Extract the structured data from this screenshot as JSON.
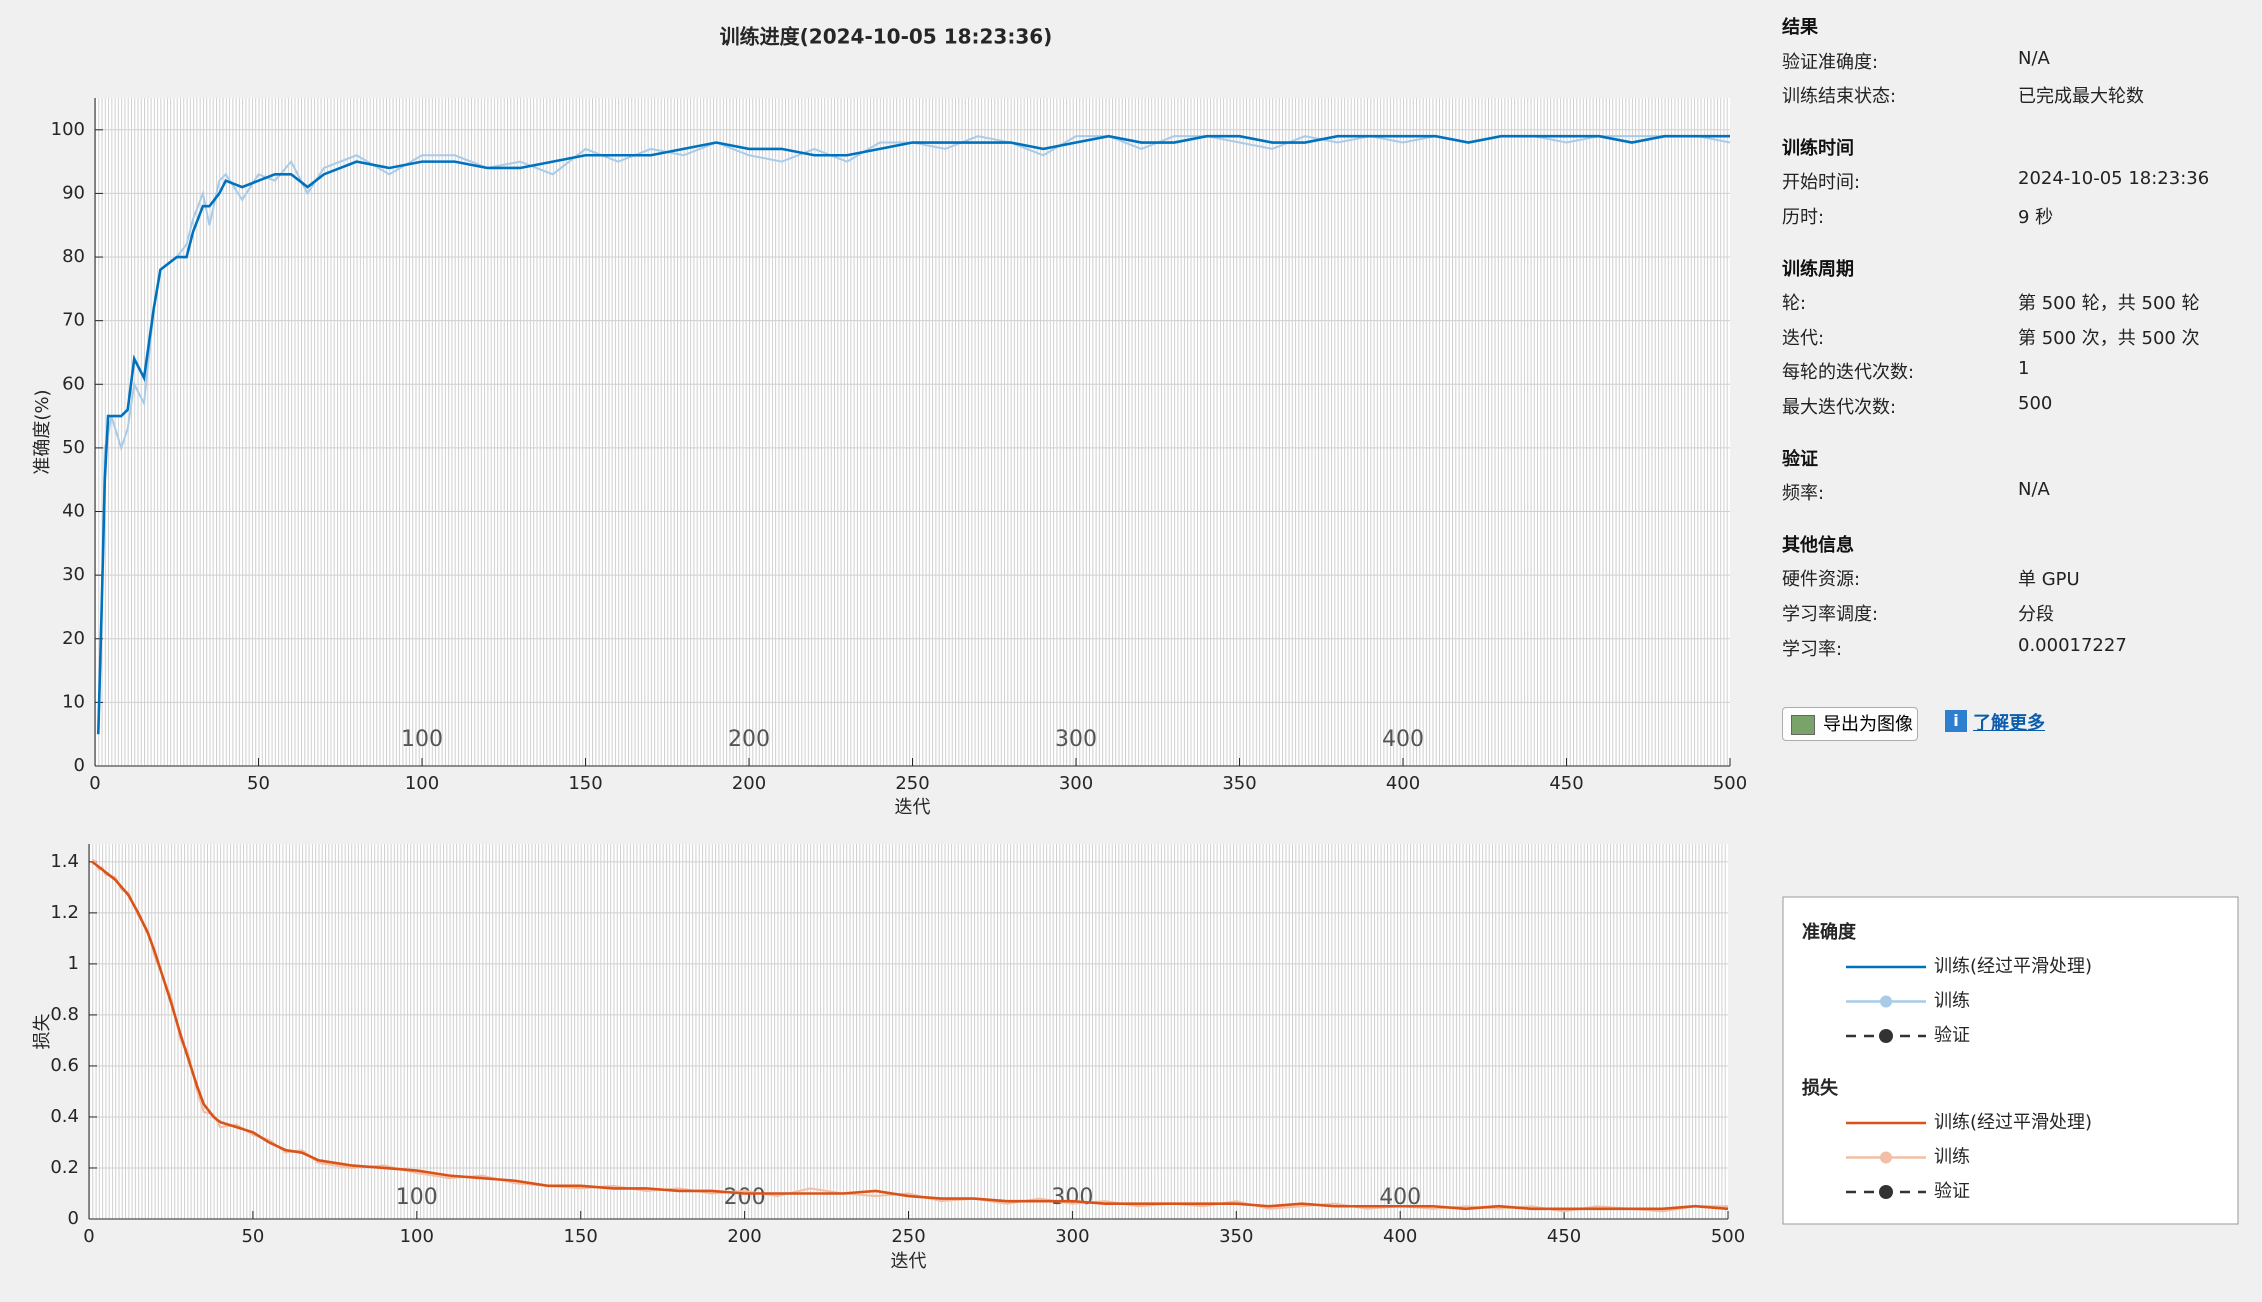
{
  "chart_data": [
    {
      "type": "line",
      "title": "训练进度(2024-10-05 18:23:36)",
      "xlabel": "迭代",
      "ylabel": "准确度(%)",
      "legend_title": "准确度",
      "validation_name": "验证",
      "validation_color": "#333333",
      "x": [
        1,
        2,
        3,
        4,
        5,
        8,
        10,
        12,
        15,
        18,
        20,
        25,
        28,
        30,
        33,
        35,
        38,
        40,
        45,
        50,
        55,
        60,
        65,
        70,
        80,
        90,
        100,
        110,
        120,
        130,
        140,
        150,
        160,
        170,
        180,
        190,
        200,
        210,
        220,
        230,
        240,
        250,
        260,
        270,
        280,
        290,
        300,
        310,
        320,
        330,
        340,
        350,
        360,
        370,
        380,
        390,
        400,
        410,
        420,
        430,
        440,
        450,
        460,
        470,
        480,
        490,
        500
      ],
      "series": [
        {
          "name": "训练(经过平滑处理)",
          "color": "#0072bd",
          "values": [
            5,
            24,
            45,
            55,
            55,
            55,
            56,
            64,
            61,
            72,
            78,
            80,
            80,
            84,
            88,
            88,
            90,
            92,
            91,
            92,
            93,
            93,
            91,
            93,
            95,
            94,
            95,
            95,
            94,
            94,
            95,
            96,
            96,
            96,
            97,
            98,
            97,
            97,
            96,
            96,
            97,
            98,
            98,
            98,
            98,
            97,
            98,
            99,
            98,
            98,
            99,
            99,
            98,
            98,
            99,
            99,
            99,
            99,
            98,
            99,
            99,
            99,
            99,
            98,
            99,
            99,
            99
          ]
        },
        {
          "name": "训练",
          "color": "#a9cbe8",
          "values": [
            5,
            23,
            50,
            52,
            55,
            50,
            53,
            60,
            57,
            72,
            78,
            80,
            82,
            86,
            90,
            85,
            92,
            93,
            89,
            93,
            92,
            95,
            90,
            94,
            96,
            93,
            96,
            96,
            94,
            95,
            93,
            97,
            95,
            97,
            96,
            98,
            96,
            95,
            97,
            95,
            98,
            98,
            97,
            99,
            98,
            96,
            99,
            99,
            97,
            99,
            99,
            98,
            97,
            99,
            98,
            99,
            98,
            99,
            98,
            99,
            99,
            98,
            99,
            99,
            99,
            99,
            98
          ]
        }
      ],
      "xlim": [
        0,
        500
      ],
      "xticks": [
        0,
        50,
        100,
        150,
        200,
        250,
        300,
        350,
        400,
        450,
        500
      ],
      "ylim": [
        0,
        105
      ],
      "yticks": [
        0,
        10,
        20,
        30,
        40,
        50,
        60,
        70,
        80,
        90,
        100
      ],
      "epoch_labels": [
        100,
        200,
        300,
        400
      ],
      "grid": true
    },
    {
      "type": "line",
      "xlabel": "迭代",
      "ylabel": "损失",
      "legend_title": "损失",
      "validation_name": "验证",
      "validation_color": "#333333",
      "x": [
        1,
        2,
        3,
        4,
        5,
        8,
        10,
        12,
        15,
        18,
        20,
        25,
        28,
        30,
        33,
        35,
        38,
        40,
        45,
        50,
        55,
        60,
        65,
        70,
        80,
        90,
        100,
        110,
        120,
        130,
        140,
        150,
        160,
        170,
        180,
        190,
        200,
        210,
        220,
        230,
        240,
        250,
        260,
        270,
        280,
        290,
        300,
        310,
        320,
        330,
        340,
        350,
        360,
        370,
        380,
        390,
        400,
        410,
        420,
        430,
        440,
        450,
        460,
        470,
        480,
        490,
        500
      ],
      "series": [
        {
          "name": "训练(经过平滑处理)",
          "color": "#d95319",
          "values": [
            1.4,
            1.39,
            1.38,
            1.37,
            1.36,
            1.33,
            1.3,
            1.27,
            1.2,
            1.12,
            1.05,
            0.85,
            0.72,
            0.64,
            0.52,
            0.45,
            0.4,
            0.38,
            0.36,
            0.34,
            0.3,
            0.27,
            0.26,
            0.23,
            0.21,
            0.2,
            0.19,
            0.17,
            0.16,
            0.15,
            0.13,
            0.13,
            0.12,
            0.12,
            0.11,
            0.11,
            0.1,
            0.1,
            0.1,
            0.1,
            0.11,
            0.09,
            0.08,
            0.08,
            0.07,
            0.07,
            0.07,
            0.06,
            0.06,
            0.06,
            0.06,
            0.06,
            0.05,
            0.06,
            0.05,
            0.05,
            0.05,
            0.05,
            0.04,
            0.05,
            0.04,
            0.04,
            0.04,
            0.04,
            0.04,
            0.05,
            0.04
          ]
        },
        {
          "name": "训练",
          "color": "#f2bea6",
          "values": [
            1.41,
            1.4,
            1.37,
            1.38,
            1.35,
            1.34,
            1.29,
            1.28,
            1.19,
            1.13,
            1.03,
            0.87,
            0.7,
            0.66,
            0.5,
            0.42,
            0.41,
            0.36,
            0.37,
            0.33,
            0.31,
            0.26,
            0.27,
            0.22,
            0.2,
            0.21,
            0.18,
            0.16,
            0.17,
            0.14,
            0.13,
            0.12,
            0.13,
            0.11,
            0.12,
            0.1,
            0.11,
            0.09,
            0.12,
            0.1,
            0.09,
            0.1,
            0.07,
            0.08,
            0.06,
            0.08,
            0.06,
            0.07,
            0.05,
            0.06,
            0.05,
            0.07,
            0.04,
            0.05,
            0.06,
            0.04,
            0.05,
            0.04,
            0.05,
            0.04,
            0.05,
            0.03,
            0.05,
            0.04,
            0.03,
            0.05,
            0.05
          ]
        }
      ],
      "xlim": [
        0,
        500
      ],
      "xticks": [
        0,
        50,
        100,
        150,
        200,
        250,
        300,
        350,
        400,
        450,
        500
      ],
      "ylim": [
        0,
        1.47
      ],
      "yticks": [
        0,
        0.2,
        0.4,
        0.6,
        0.8,
        1,
        1.2,
        1.4
      ],
      "epoch_labels": [
        100,
        200,
        300,
        400
      ],
      "grid": true
    }
  ],
  "panel": {
    "sections": [
      {
        "heading": "结果",
        "rows": [
          [
            "验证准确度:",
            "N/A"
          ],
          [
            "训练结束状态:",
            "已完成最大轮数"
          ]
        ]
      },
      {
        "heading": "训练时间",
        "rows": [
          [
            "开始时间:",
            "2024-10-05 18:23:36"
          ],
          [
            "历时:",
            "9 秒"
          ]
        ]
      },
      {
        "heading": "训练周期",
        "rows": [
          [
            "轮:",
            "第 500 轮，共 500 轮"
          ],
          [
            "迭代:",
            "第 500 次，共 500 次"
          ],
          [
            "每轮的迭代次数:",
            "1"
          ],
          [
            "最大迭代次数:",
            "500"
          ]
        ]
      },
      {
        "heading": "验证",
        "rows": [
          [
            "频率:",
            "N/A"
          ]
        ]
      },
      {
        "heading": "其他信息",
        "rows": [
          [
            "硬件资源:",
            "单 GPU"
          ],
          [
            "学习率调度:",
            "分段"
          ],
          [
            "学习率:",
            "0.00017227"
          ]
        ]
      }
    ]
  },
  "buttons": {
    "export": "导出为图像",
    "learn_more": "了解更多"
  }
}
